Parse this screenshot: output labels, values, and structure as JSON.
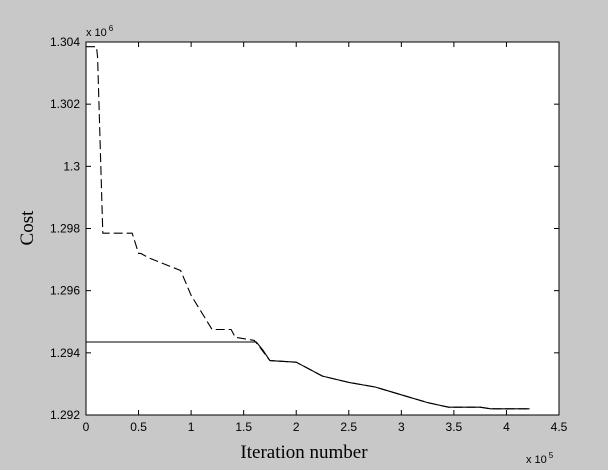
{
  "chart_data": {
    "type": "line",
    "title": "",
    "xlabel": "Iteration number",
    "ylabel": "Cost",
    "x_multiplier_label": "x 10",
    "x_multiplier_exp": "5",
    "y_multiplier_label": "x 10",
    "y_multiplier_exp": "6",
    "xlim": [
      0,
      4.5
    ],
    "ylim": [
      1.292,
      1.304
    ],
    "x_ticks": [
      0,
      0.5,
      1,
      1.5,
      2,
      2.5,
      3,
      3.5,
      4,
      4.5
    ],
    "x_tick_labels": [
      "0",
      "0.5",
      "1",
      "1.5",
      "2",
      "2.5",
      "3",
      "3.5",
      "4",
      "4.5"
    ],
    "y_ticks": [
      1.292,
      1.294,
      1.296,
      1.298,
      1.3,
      1.302,
      1.304
    ],
    "y_tick_labels": [
      "1.292",
      "1.294",
      "1.296",
      "1.298",
      "1.3",
      "1.302",
      "1.304"
    ],
    "grid": false,
    "series": [
      {
        "style": "dashed",
        "color": "#000000",
        "points": [
          [
            0.0,
            1.30385
          ],
          [
            0.1,
            1.30385
          ],
          [
            0.11,
            1.3035
          ],
          [
            0.16,
            1.29785
          ],
          [
            0.44,
            1.29785
          ],
          [
            0.5,
            1.2972
          ],
          [
            0.52,
            1.2972
          ],
          [
            0.6,
            1.29705
          ],
          [
            0.9,
            1.29665
          ],
          [
            1.0,
            1.29585
          ],
          [
            1.2,
            1.29475
          ],
          [
            1.38,
            1.29475
          ],
          [
            1.42,
            1.2945
          ],
          [
            1.6,
            1.2944
          ],
          [
            1.65,
            1.2942
          ],
          [
            1.75,
            1.29375
          ],
          [
            2.0,
            1.2937
          ],
          [
            2.25,
            1.29325
          ],
          [
            2.5,
            1.29305
          ],
          [
            2.75,
            1.2929
          ],
          [
            3.0,
            1.29265
          ],
          [
            3.25,
            1.2924
          ],
          [
            3.45,
            1.29225
          ],
          [
            3.75,
            1.29225
          ],
          [
            3.85,
            1.2922
          ],
          [
            4.22,
            1.2922
          ]
        ]
      },
      {
        "style": "solid",
        "color": "#000000",
        "points": [
          [
            0.0,
            1.29435
          ],
          [
            1.62,
            1.29435
          ],
          [
            1.68,
            1.2941
          ],
          [
            1.75,
            1.29375
          ],
          [
            2.0,
            1.2937
          ],
          [
            2.25,
            1.29325
          ],
          [
            2.5,
            1.29305
          ],
          [
            2.75,
            1.2929
          ],
          [
            3.0,
            1.29265
          ],
          [
            3.25,
            1.2924
          ],
          [
            3.45,
            1.29225
          ],
          [
            3.75,
            1.29225
          ],
          [
            3.85,
            1.2922
          ],
          [
            4.22,
            1.2922
          ]
        ]
      }
    ]
  }
}
